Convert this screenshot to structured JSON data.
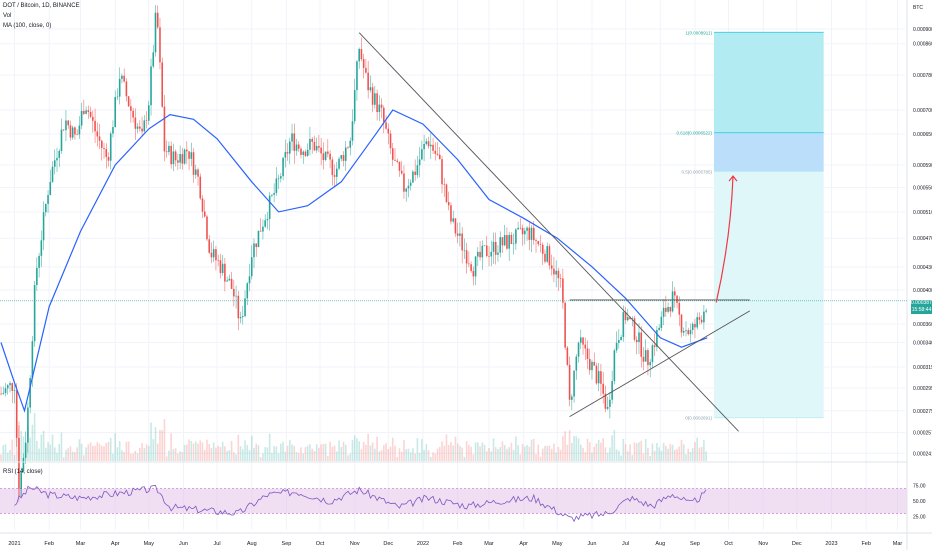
{
  "legend": {
    "symbol": "DOT / Bitcoin, 1D, BINANCE",
    "volume": "Vol",
    "ma": "MA (100, close, 0)",
    "rsi": "RSI (14, close)"
  },
  "currency": "BTC",
  "last_price": {
    "value": "0.0003872",
    "countdown": "15:58:44"
  },
  "colors": {
    "up": "#26a69a",
    "down": "#ef5350",
    "ma": "#2962ff",
    "rsi_line": "#7e57c2",
    "rsi_band": "#e1bee7",
    "fib_upper": "#b2ebf2",
    "fib_mid": "#bbdefb",
    "fib_lower": "#e0f7fa",
    "arrow": "#f23645"
  },
  "fib_labels": [
    {
      "text": "1(0.0008911)",
      "price": 0.0008911
    },
    {
      "text": "0.618(0.0006522)",
      "price": 0.0006522
    },
    {
      "text": "0.5(0.0005785)",
      "price": 0.0005785
    },
    {
      "text": "0(0.0002691)",
      "price": 0.0002691
    }
  ],
  "chart_data": {
    "type": "candlestick",
    "title": "DOT / Bitcoin, 1D, BINANCE",
    "y_scale": "log",
    "y_ticks": [
      "0.0009000",
      "0.0008600",
      "0.0007800",
      "0.0007000",
      "0.0006500",
      "0.0005900",
      "0.0005500",
      "0.0005100",
      "0.0004700",
      "0.0004300",
      "0.0004000",
      "0.0003600",
      "0.0003400",
      "0.0003150",
      "0.0002950",
      "0.0002750",
      "0.0002570",
      "0.0002410"
    ],
    "x_ticks": [
      "2021",
      "Feb",
      "Mar",
      "Apr",
      "May",
      "Jun",
      "Jul",
      "Aug",
      "Sep",
      "Oct",
      "Nov",
      "Dec",
      "2022",
      "Feb",
      "Mar",
      "Apr",
      "May",
      "Jun",
      "Jul",
      "Aug",
      "Sep",
      "Oct",
      "Nov",
      "Dec",
      "2023",
      "Feb",
      "Mar"
    ],
    "price_path": [
      [
        "2020-12-20",
        0.00029
      ],
      [
        "2021-01-01",
        0.0003
      ],
      [
        "2021-01-05",
        0.000215
      ],
      [
        "2021-01-12",
        0.00026
      ],
      [
        "2021-01-20",
        0.00042
      ],
      [
        "2021-02-01",
        0.00056
      ],
      [
        "2021-02-15",
        0.00068
      ],
      [
        "2021-02-25",
        0.00064
      ],
      [
        "2021-03-05",
        0.00072
      ],
      [
        "2021-03-15",
        0.00065
      ],
      [
        "2021-03-25",
        0.0006
      ],
      [
        "2021-04-05",
        0.00078
      ],
      [
        "2021-04-15",
        0.0007
      ],
      [
        "2021-04-25",
        0.00064
      ],
      [
        "2021-05-01",
        0.00072
      ],
      [
        "2021-05-08",
        0.00096
      ],
      [
        "2021-05-15",
        0.00062
      ],
      [
        "2021-05-25",
        0.0006
      ],
      [
        "2021-06-05",
        0.00062
      ],
      [
        "2021-06-15",
        0.00056
      ],
      [
        "2021-06-25",
        0.00045
      ],
      [
        "2021-07-05",
        0.00043
      ],
      [
        "2021-07-15",
        0.0004
      ],
      [
        "2021-07-22",
        0.00036
      ],
      [
        "2021-08-01",
        0.00045
      ],
      [
        "2021-08-12",
        0.0005
      ],
      [
        "2021-08-25",
        0.00056
      ],
      [
        "2021-09-05",
        0.00064
      ],
      [
        "2021-09-15",
        0.00062
      ],
      [
        "2021-09-25",
        0.00063
      ],
      [
        "2021-10-05",
        0.0006
      ],
      [
        "2021-10-15",
        0.00058
      ],
      [
        "2021-10-28",
        0.00064
      ],
      [
        "2021-11-05",
        0.00085
      ],
      [
        "2021-11-12",
        0.00076
      ],
      [
        "2021-11-25",
        0.00069
      ],
      [
        "2021-12-05",
        0.0006
      ],
      [
        "2021-12-15",
        0.00055
      ],
      [
        "2021-12-25",
        0.00058
      ],
      [
        "2022-01-05",
        0.00064
      ],
      [
        "2022-01-15",
        0.0006
      ],
      [
        "2022-01-25",
        0.0005
      ],
      [
        "2022-02-05",
        0.00046
      ],
      [
        "2022-02-15",
        0.00043
      ],
      [
        "2022-02-25",
        0.00045
      ],
      [
        "2022-03-10",
        0.00046
      ],
      [
        "2022-03-25",
        0.00047
      ],
      [
        "2022-04-05",
        0.00048
      ],
      [
        "2022-04-15",
        0.00046
      ],
      [
        "2022-04-25",
        0.00044
      ],
      [
        "2022-05-05",
        0.0004
      ],
      [
        "2022-05-12",
        0.00028
      ],
      [
        "2022-05-20",
        0.00034
      ],
      [
        "2022-05-30",
        0.00032
      ],
      [
        "2022-06-08",
        0.0003
      ],
      [
        "2022-06-15",
        0.000275
      ],
      [
        "2022-06-22",
        0.00034
      ],
      [
        "2022-07-01",
        0.00037
      ],
      [
        "2022-07-10",
        0.00035
      ],
      [
        "2022-07-20",
        0.00032
      ],
      [
        "2022-07-28",
        0.000345
      ],
      [
        "2022-08-05",
        0.000375
      ],
      [
        "2022-08-12",
        0.00039
      ],
      [
        "2022-08-20",
        0.00036
      ],
      [
        "2022-08-28",
        0.00035
      ],
      [
        "2022-09-05",
        0.000365
      ],
      [
        "2022-09-12",
        0.000387
      ]
    ],
    "ma_100": [
      [
        "2020-12-20",
        0.00034
      ],
      [
        "2021-01-01",
        0.0003
      ],
      [
        "2021-01-10",
        0.000275
      ],
      [
        "2021-02-01",
        0.00038
      ],
      [
        "2021-03-01",
        0.00048
      ],
      [
        "2021-04-01",
        0.00059
      ],
      [
        "2021-05-01",
        0.00066
      ],
      [
        "2021-05-20",
        0.00069
      ],
      [
        "2021-06-10",
        0.00068
      ],
      [
        "2021-07-01",
        0.00064
      ],
      [
        "2021-08-01",
        0.00056
      ],
      [
        "2021-08-25",
        0.00051
      ],
      [
        "2021-09-20",
        0.00052
      ],
      [
        "2021-10-20",
        0.00056
      ],
      [
        "2021-11-20",
        0.00065
      ],
      [
        "2021-12-05",
        0.0007
      ],
      [
        "2022-01-01",
        0.00067
      ],
      [
        "2022-02-01",
        0.0006
      ],
      [
        "2022-03-01",
        0.00053
      ],
      [
        "2022-04-01",
        0.0005
      ],
      [
        "2022-05-01",
        0.00047
      ],
      [
        "2022-06-01",
        0.00043
      ],
      [
        "2022-07-01",
        0.00039
      ],
      [
        "2022-08-01",
        0.000345
      ],
      [
        "2022-08-20",
        0.000335
      ],
      [
        "2022-09-12",
        0.000345
      ]
    ],
    "rsi": {
      "range": [
        0,
        100
      ],
      "band": [
        30,
        70
      ],
      "levels": [
        "75.00",
        "50.00",
        "25.00"
      ],
      "values": [
        [
          "2021-01-01",
          45
        ],
        [
          "2021-01-15",
          72
        ],
        [
          "2021-02-01",
          60
        ],
        [
          "2021-03-01",
          55
        ],
        [
          "2021-04-01",
          62
        ],
        [
          "2021-05-08",
          70
        ],
        [
          "2021-05-20",
          40
        ],
        [
          "2021-06-20",
          35
        ],
        [
          "2021-07-20",
          30
        ],
        [
          "2021-08-15",
          60
        ],
        [
          "2021-09-10",
          65
        ],
        [
          "2021-10-10",
          50
        ],
        [
          "2021-11-05",
          68
        ],
        [
          "2021-12-10",
          40
        ],
        [
          "2022-01-05",
          55
        ],
        [
          "2022-02-10",
          42
        ],
        [
          "2022-03-10",
          50
        ],
        [
          "2022-04-10",
          55
        ],
        [
          "2022-05-12",
          22
        ],
        [
          "2022-06-15",
          30
        ],
        [
          "2022-07-05",
          55
        ],
        [
          "2022-07-25",
          42
        ],
        [
          "2022-08-12",
          62
        ],
        [
          "2022-08-28",
          45
        ],
        [
          "2022-09-12",
          64
        ]
      ]
    }
  },
  "drawings": {
    "downtrend_line": [
      [
        "2021-11-05",
        0.00089
      ],
      [
        "2022-10-10",
        0.000258
      ]
    ],
    "uptrend_line": [
      [
        "2022-05-12",
        0.00027
      ],
      [
        "2022-10-20",
        0.000375
      ]
    ],
    "resistance_line": [
      [
        "2022-05-12",
        0.000388
      ],
      [
        "2022-10-20",
        0.000388
      ]
    ],
    "arrow": [
      [
        "2022-09-20",
        0.000385
      ],
      [
        "2022-10-05",
        0.00057
      ]
    ],
    "fib_box_dates": [
      "2022-09-18",
      "2022-12-25"
    ]
  }
}
